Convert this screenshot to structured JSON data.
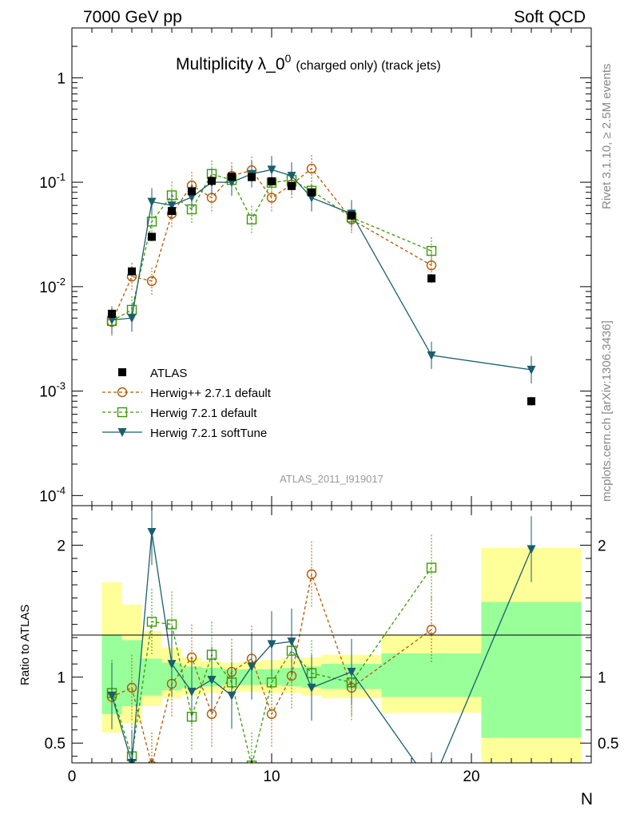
{
  "header": {
    "left": "7000 GeV pp",
    "right": "Soft QCD"
  },
  "side_labels": {
    "rivet": "Rivet 3.1.10, ≥ 2.5M events",
    "mcplots": "mcplots.cern.ch [arXiv:1306.3436]"
  },
  "chart_data": {
    "type": "line",
    "title_main": "Multiplicity λ_0",
    "title_sup": "0",
    "title_sub": "(charged only) (track jets)",
    "analysis_id": "ATLAS_2011_I919017",
    "xlabel": "N",
    "ylabel_ratio": "Ratio to ATLAS",
    "xlim": [
      0,
      26
    ],
    "ylim_main": [
      8e-05,
      3
    ],
    "ylim_ratio": [
      0.35,
      2.3
    ],
    "y_scale_main": "log",
    "x_ticks": [
      "0",
      "10",
      "20"
    ],
    "y_ticks_main": [
      "1",
      "10^-1",
      "10^-2",
      "10^-3",
      "10^-4"
    ],
    "y_ticks_ratio": [
      "0.5",
      "1",
      "2"
    ],
    "legend": [
      "ATLAS",
      "Herwig++ 2.7.1 default",
      "Herwig 7.2.1 default",
      "Herwig 7.2.1 softTune"
    ],
    "colors": {
      "atlas": "#000000",
      "herwigpp": "#b35900",
      "h7default": "#3a9a00",
      "softtune": "#1a5e6e",
      "band_inner": "#99ff99",
      "band_outer": "#ffff99"
    },
    "atlas": [
      {
        "x": 2,
        "y": 0.0055
      },
      {
        "x": 3,
        "y": 0.014
      },
      {
        "x": 4,
        "y": 0.03
      },
      {
        "x": 5,
        "y": 0.053
      },
      {
        "x": 6,
        "y": 0.082
      },
      {
        "x": 7,
        "y": 0.103
      },
      {
        "x": 8,
        "y": 0.113
      },
      {
        "x": 9,
        "y": 0.112
      },
      {
        "x": 10,
        "y": 0.102
      },
      {
        "x": 11,
        "y": 0.092
      },
      {
        "x": 12,
        "y": 0.08
      },
      {
        "x": 14,
        "y": 0.048
      },
      {
        "x": 18,
        "y": 0.012
      },
      {
        "x": 23,
        "y": 0.0008
      }
    ],
    "series": [
      {
        "name": "Herwig++ 2.7.1 default",
        "key": "herwigpp",
        "marker": "circle",
        "dashed": true,
        "x": [
          2,
          3,
          4,
          5,
          6,
          7,
          8,
          9,
          10,
          11,
          12,
          14,
          18
        ],
        "y": [
          0.0046,
          0.0125,
          0.0113,
          0.05,
          0.093,
          0.071,
          0.115,
          0.13,
          0.071,
          0.095,
          0.135,
          0.044,
          0.016
        ],
        "ratio": [
          0.85,
          0.92,
          0.33,
          0.95,
          1.15,
          0.72,
          1.04,
          1.14,
          0.72,
          1.01,
          1.78,
          0.92,
          1.36
        ]
      },
      {
        "name": "Herwig 7.2.1 default",
        "key": "h7default",
        "marker": "square",
        "dashed": true,
        "x": [
          2,
          3,
          4,
          5,
          6,
          7,
          8,
          9,
          10,
          11,
          12,
          14,
          18
        ],
        "y": [
          0.0047,
          0.006,
          0.042,
          0.075,
          0.055,
          0.12,
          0.105,
          0.044,
          0.099,
          0.105,
          0.083,
          0.046,
          0.022
        ],
        "ratio": [
          0.88,
          0.4,
          1.42,
          1.4,
          0.7,
          1.17,
          0.96,
          0.33,
          0.96,
          1.2,
          1.03,
          0.96,
          1.83
        ]
      },
      {
        "name": "Herwig 7.2.1 softTune",
        "key": "softtune",
        "marker": "triangle",
        "dashed": false,
        "x": [
          2,
          3,
          4,
          5,
          6,
          7,
          8,
          9,
          10,
          11,
          12,
          14,
          18,
          23
        ],
        "y": [
          0.0048,
          0.005,
          0.065,
          0.06,
          0.072,
          0.1,
          0.1,
          0.12,
          0.132,
          0.115,
          0.071,
          0.05,
          0.0022,
          0.0016
        ],
        "ratio": [
          0.86,
          0.35,
          2.1,
          1.1,
          0.89,
          0.98,
          0.86,
          1.08,
          1.25,
          1.27,
          0.92,
          1.04,
          0.18,
          1.97
        ]
      }
    ],
    "bands": [
      {
        "x": [
          1.5,
          2.5
        ],
        "inner": [
          0.72,
          1.32
        ],
        "outer": [
          0.58,
          1.72
        ]
      },
      {
        "x": [
          2.5,
          3.5
        ],
        "inner": [
          0.78,
          1.28
        ],
        "outer": [
          0.65,
          1.55
        ]
      },
      {
        "x": [
          3.5,
          4.5
        ],
        "inner": [
          0.86,
          1.14
        ],
        "outer": [
          0.78,
          1.35
        ]
      },
      {
        "x": [
          4.5,
          5.5
        ],
        "inner": [
          0.9,
          1.11
        ],
        "outer": [
          0.84,
          1.22
        ]
      },
      {
        "x": [
          5.5,
          6.5
        ],
        "inner": [
          0.92,
          1.08
        ],
        "outer": [
          0.86,
          1.15
        ]
      },
      {
        "x": [
          6.5,
          7.5
        ],
        "inner": [
          0.93,
          1.07
        ],
        "outer": [
          0.88,
          1.12
        ]
      },
      {
        "x": [
          7.5,
          8.5
        ],
        "inner": [
          0.94,
          1.06
        ],
        "outer": [
          0.89,
          1.11
        ]
      },
      {
        "x": [
          8.5,
          9.5
        ],
        "inner": [
          0.94,
          1.06
        ],
        "outer": [
          0.89,
          1.12
        ]
      },
      {
        "x": [
          9.5,
          10.5
        ],
        "inner": [
          0.94,
          1.06
        ],
        "outer": [
          0.88,
          1.13
        ]
      },
      {
        "x": [
          10.5,
          11.5
        ],
        "inner": [
          0.93,
          1.07
        ],
        "outer": [
          0.88,
          1.14
        ]
      },
      {
        "x": [
          11.5,
          12.5
        ],
        "inner": [
          0.92,
          1.08
        ],
        "outer": [
          0.86,
          1.15
        ]
      },
      {
        "x": [
          12.5,
          15.5
        ],
        "inner": [
          0.91,
          1.1
        ],
        "outer": [
          0.84,
          1.17
        ]
      },
      {
        "x": [
          15.5,
          20.5
        ],
        "inner": [
          0.85,
          1.18
        ],
        "outer": [
          0.73,
          1.32
        ]
      },
      {
        "x": [
          20.5,
          25.5
        ],
        "inner": [
          0.54,
          1.57
        ],
        "outer": [
          0.3,
          1.98
        ]
      }
    ]
  }
}
